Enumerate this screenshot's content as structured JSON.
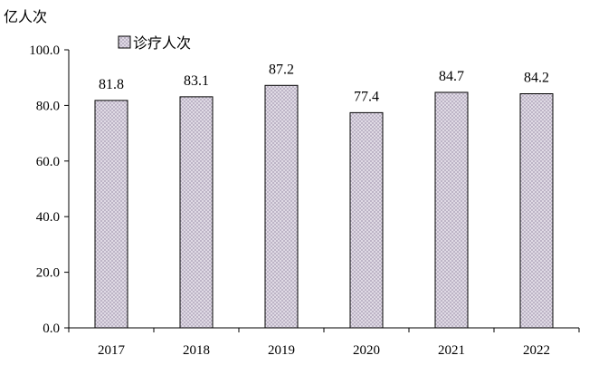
{
  "chart_data": {
    "type": "bar",
    "ylabel": "亿人次",
    "categories": [
      "2017",
      "2018",
      "2019",
      "2020",
      "2021",
      "2022"
    ],
    "series": [
      {
        "name": "诊疗人次",
        "values": [
          81.8,
          83.1,
          87.2,
          77.4,
          84.7,
          84.2
        ]
      }
    ],
    "data_labels": [
      "81.8",
      "83.1",
      "87.2",
      "77.4",
      "84.7",
      "84.2"
    ],
    "ylim": [
      0,
      100
    ],
    "yticks": [
      "0.0",
      "20.0",
      "40.0",
      "60.0",
      "80.0",
      "100.0"
    ],
    "grid": false,
    "legend_position": "top-left",
    "bar_fill": "#d6cedd",
    "bar_stroke": "#000000"
  }
}
